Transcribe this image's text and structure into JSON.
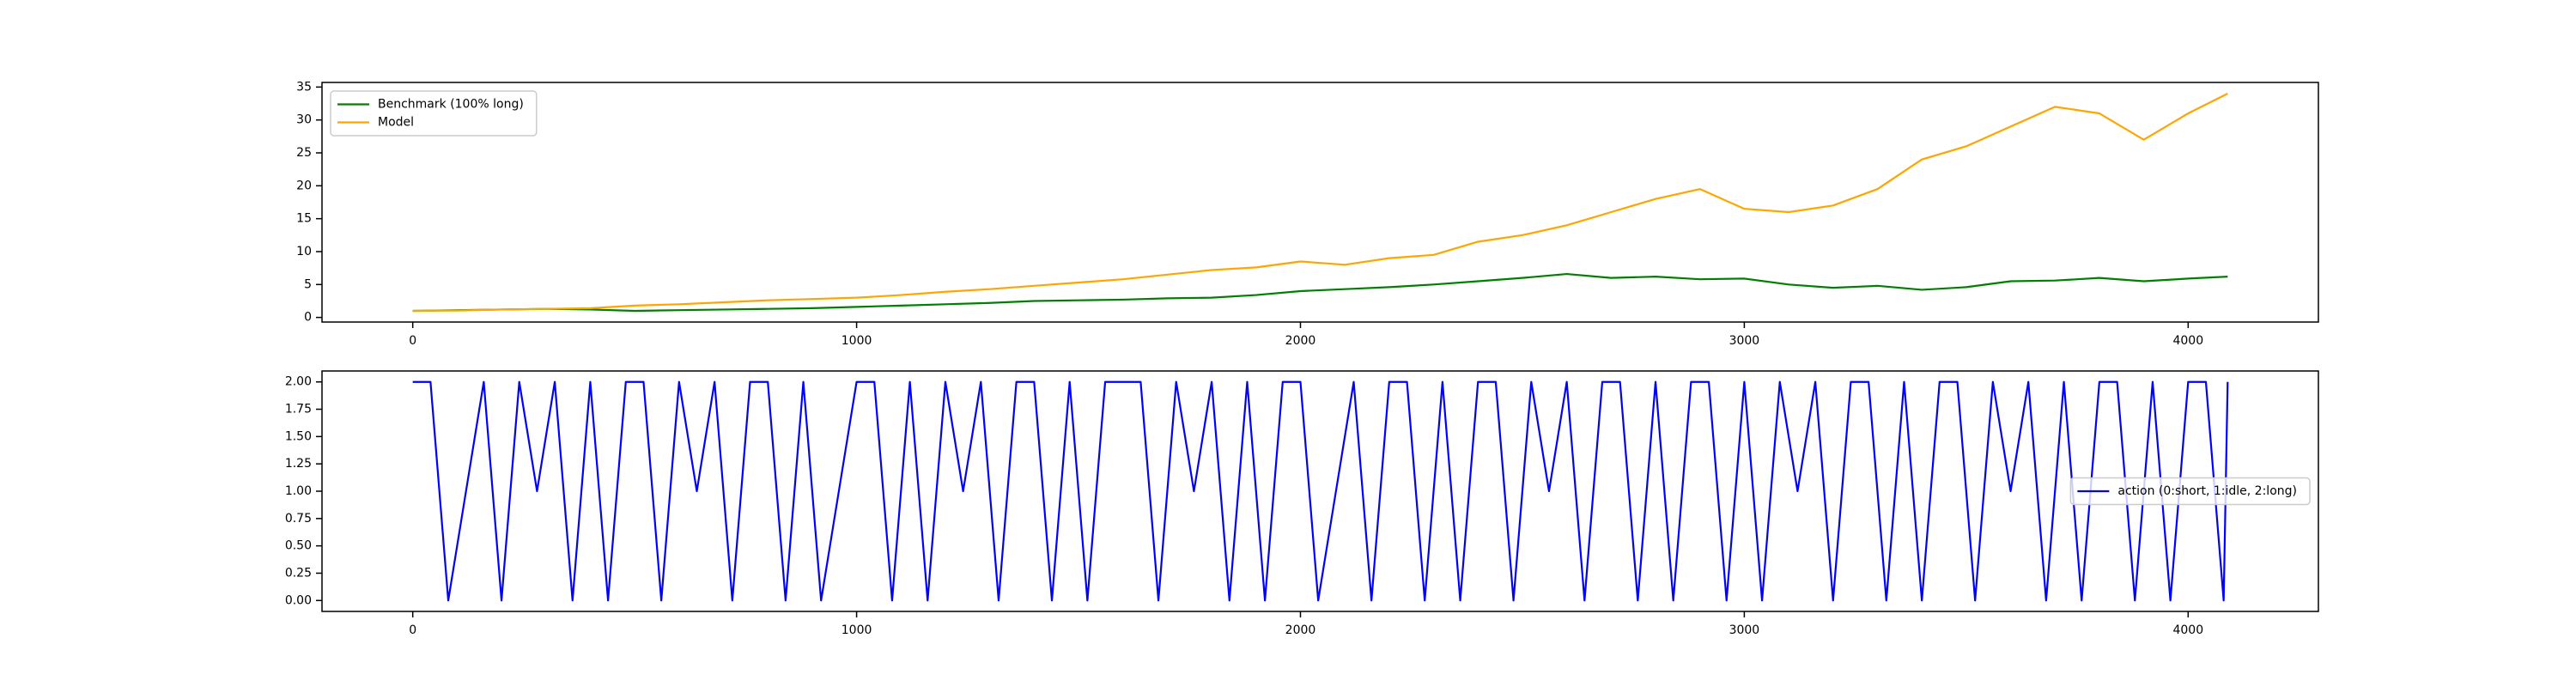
{
  "chart_data": [
    {
      "type": "line",
      "x": [
        0,
        100,
        200,
        300,
        400,
        500,
        600,
        700,
        800,
        900,
        1000,
        1100,
        1200,
        1300,
        1400,
        1500,
        1600,
        1700,
        1800,
        1900,
        2000,
        2100,
        2200,
        2300,
        2400,
        2500,
        2600,
        2700,
        2800,
        2900,
        3000,
        3100,
        3200,
        3300,
        3400,
        3500,
        3600,
        3700,
        3800,
        3900,
        4000,
        4089
      ],
      "series": [
        {
          "name": "Benchmark (100% long)",
          "color": "green",
          "values": [
            1,
            1.1,
            1.2,
            1.3,
            1.2,
            1.0,
            1.1,
            1.2,
            1.3,
            1.4,
            1.6,
            1.8,
            2.0,
            2.2,
            2.5,
            2.6,
            2.7,
            2.9,
            3.0,
            3.4,
            4.0,
            4.3,
            4.6,
            5.0,
            5.5,
            6.0,
            6.6,
            6.0,
            6.2,
            5.8,
            5.9,
            5.0,
            4.5,
            4.8,
            4.2,
            4.6,
            5.5,
            5.6,
            6.0,
            5.5,
            5.9,
            6.2
          ]
        },
        {
          "name": "Model",
          "color": "orange",
          "values": [
            1,
            1.05,
            1.2,
            1.3,
            1.4,
            1.8,
            2.0,
            2.3,
            2.6,
            2.8,
            3.0,
            3.4,
            3.9,
            4.3,
            4.8,
            5.3,
            5.8,
            6.5,
            7.2,
            7.6,
            8.5,
            8.0,
            9.0,
            9.5,
            11.5,
            12.5,
            14,
            16,
            18,
            19.5,
            16.5,
            16.0,
            17,
            19.5,
            24,
            26,
            29,
            32,
            31,
            27,
            31,
            34
          ]
        }
      ],
      "xlim": [
        -204.45,
        4293.45
      ],
      "xticks": [
        0,
        1000,
        2000,
        3000,
        4000
      ],
      "ylim": [
        -0.7,
        35.7
      ],
      "yticks": [
        0,
        5,
        10,
        15,
        20,
        25,
        30,
        35
      ],
      "legend": "upper left"
    },
    {
      "type": "line",
      "x": [
        0,
        40,
        80,
        120,
        160,
        200,
        240,
        280,
        320,
        360,
        400,
        440,
        480,
        520,
        560,
        600,
        640,
        680,
        720,
        760,
        800,
        840,
        880,
        920,
        960,
        1000,
        1040,
        1080,
        1120,
        1160,
        1200,
        1240,
        1280,
        1320,
        1360,
        1400,
        1440,
        1480,
        1520,
        1560,
        1600,
        1640,
        1680,
        1720,
        1760,
        1800,
        1840,
        1880,
        1920,
        1960,
        2000,
        2040,
        2080,
        2120,
        2160,
        2200,
        2240,
        2280,
        2320,
        2360,
        2400,
        2440,
        2480,
        2520,
        2560,
        2600,
        2640,
        2680,
        2720,
        2760,
        2800,
        2840,
        2880,
        2920,
        2960,
        3000,
        3040,
        3080,
        3120,
        3160,
        3200,
        3240,
        3280,
        3320,
        3360,
        3400,
        3440,
        3480,
        3520,
        3560,
        3600,
        3640,
        3680,
        3720,
        3760,
        3800,
        3840,
        3880,
        3920,
        3960,
        4000,
        4040,
        4080,
        4089
      ],
      "series": [
        {
          "name": "action (0:short, 1:idle, 2:long)",
          "color": "blue",
          "values": [
            2,
            2,
            0,
            1,
            2,
            0,
            2,
            1,
            2,
            0,
            2,
            0,
            2,
            2,
            0,
            2,
            1,
            2,
            0,
            2,
            2,
            0,
            2,
            0,
            1,
            2,
            2,
            0,
            2,
            0,
            2,
            1,
            2,
            0,
            2,
            2,
            0,
            2,
            0,
            2,
            2,
            2,
            0,
            2,
            1,
            2,
            0,
            2,
            0,
            2,
            2,
            0,
            1,
            2,
            0,
            2,
            2,
            0,
            2,
            0,
            2,
            2,
            0,
            2,
            1,
            2,
            0,
            2,
            2,
            0,
            2,
            0,
            2,
            2,
            0,
            2,
            0,
            2,
            1,
            2,
            0,
            2,
            2,
            0,
            2,
            0,
            2,
            2,
            0,
            2,
            1,
            2,
            0,
            2,
            0,
            2,
            2,
            0,
            2,
            0,
            2,
            2,
            0,
            2
          ]
        }
      ],
      "xlim": [
        -204.45,
        4293.45
      ],
      "xticks": [
        0,
        1000,
        2000,
        3000,
        4000
      ],
      "ylim": [
        -0.1,
        2.1
      ],
      "yticks": [
        {
          "value": 0,
          "label": "0.00"
        },
        {
          "value": 0.25,
          "label": "0.25"
        },
        {
          "value": 0.5,
          "label": "0.50"
        },
        {
          "value": 0.75,
          "label": "0.75"
        },
        {
          "value": 1,
          "label": "1.00"
        },
        {
          "value": 1.25,
          "label": "1.25"
        },
        {
          "value": 1.5,
          "label": "1.50"
        },
        {
          "value": 1.75,
          "label": "1.75"
        },
        {
          "value": 2,
          "label": "2.00"
        }
      ],
      "legend": "center right"
    }
  ]
}
